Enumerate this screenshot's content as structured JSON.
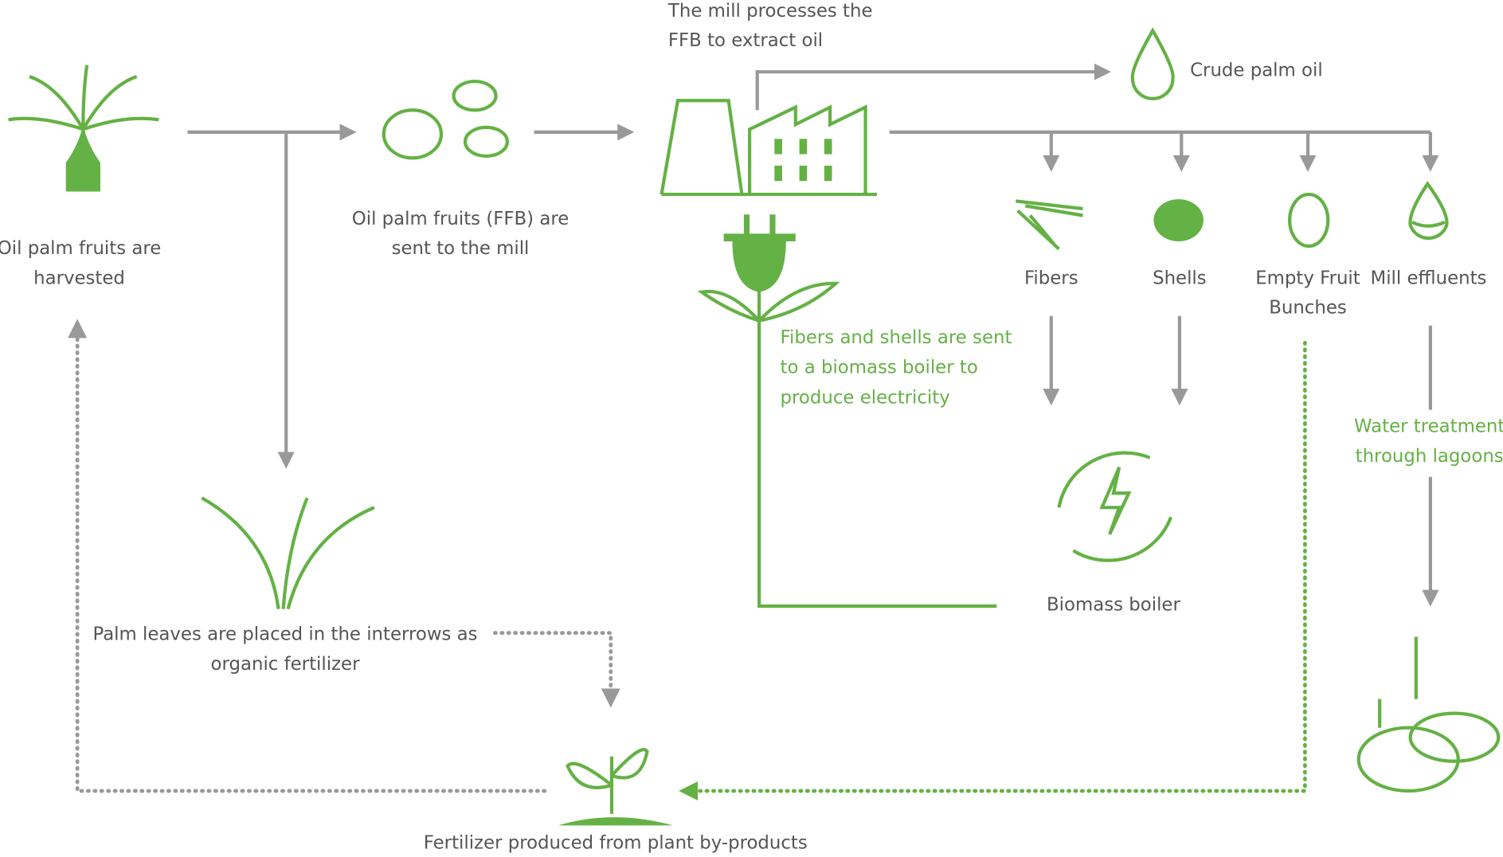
{
  "nodes": [
    {
      "label": [
        "Oil palm fruits are",
        "harvested"
      ]
    },
    {
      "label": [
        "Oil palm fruits (FFB) are",
        "sent to the mill"
      ]
    },
    {
      "label": [
        "The mill processes the",
        "FFB to extract oil"
      ]
    },
    {
      "label": [
        "Crude palm oil"
      ]
    },
    {
      "label": [
        "Fibers"
      ]
    },
    {
      "label": [
        "Shells"
      ]
    },
    {
      "label": [
        "Empty Fruit",
        "Bunches"
      ]
    },
    {
      "label": [
        "Mill effluents"
      ]
    },
    {
      "label": [
        "Fibers and shells are sent",
        "to a biomass boiler to",
        "produce electricity"
      ]
    },
    {
      "label": [
        "Biomass boiler"
      ]
    },
    {
      "label": [
        "Water treatment",
        "through lagoons"
      ]
    },
    {
      "label": [
        "Palm leaves are placed in the interrows as",
        "organic fertilizer"
      ]
    },
    {
      "label": [
        "Fertilizer produced from plant by-products"
      ]
    }
  ]
}
